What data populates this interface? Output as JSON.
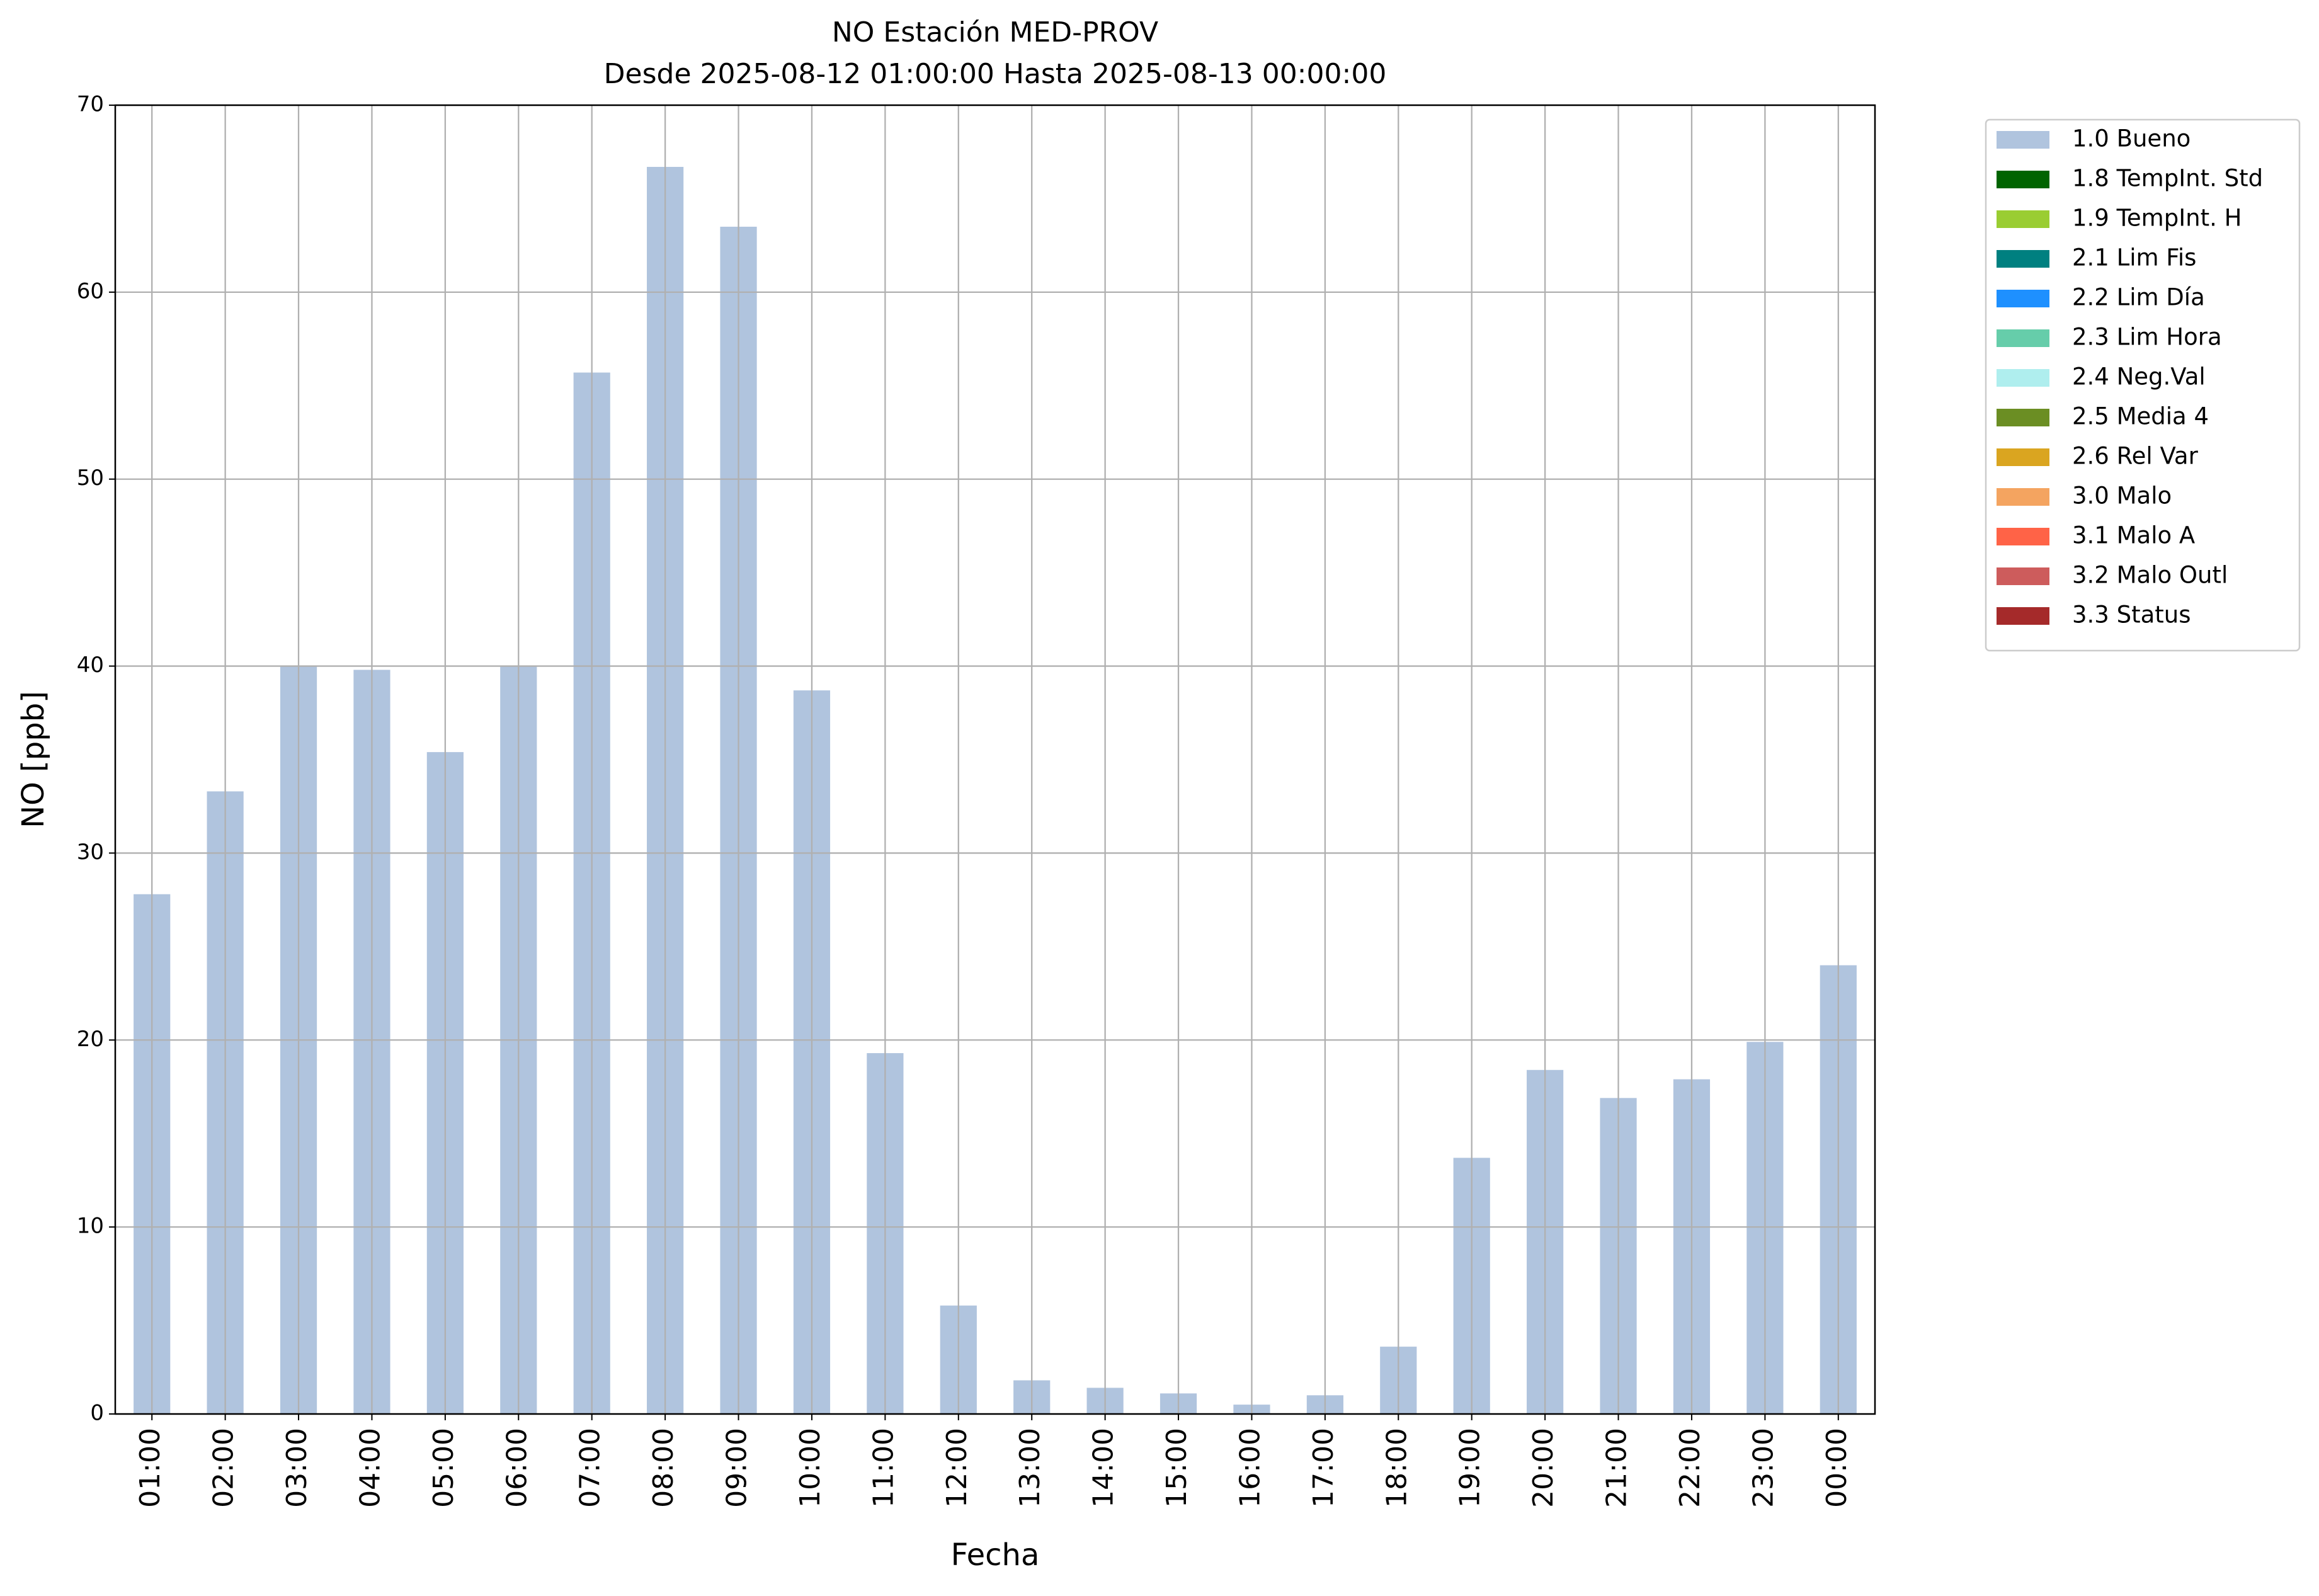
{
  "chart_data": {
    "type": "bar",
    "stacked": true,
    "title": "NO Estación MED-PROV",
    "subtitle": "Desde 2025-08-12 01:00:00 Hasta 2025-08-13 00:00:00",
    "x_label": "Fecha",
    "y_label": "NO [ppb]",
    "categories": [
      "01:00",
      "02:00",
      "03:00",
      "04:00",
      "05:00",
      "06:00",
      "07:00",
      "08:00",
      "09:00",
      "10:00",
      "11:00",
      "12:00",
      "13:00",
      "14:00",
      "15:00",
      "16:00",
      "17:00",
      "18:00",
      "19:00",
      "20:00",
      "21:00",
      "22:00",
      "23:00",
      "00:00"
    ],
    "series": [
      {
        "name": "1.0 Bueno",
        "color": "#b0c4de",
        "values": [
          27.8,
          33.3,
          40.0,
          39.8,
          35.4,
          40.0,
          55.7,
          66.7,
          63.5,
          38.7,
          19.3,
          5.8,
          1.8,
          1.4,
          1.1,
          0.5,
          1.0,
          3.6,
          13.7,
          18.4,
          16.9,
          17.9,
          19.9,
          24.0
        ]
      },
      {
        "name": "1.8 TempInt. Std",
        "color": "#006400",
        "values": [
          0,
          0,
          0,
          0,
          0,
          0,
          0,
          0,
          0,
          0,
          0,
          0,
          0,
          0,
          0,
          0,
          0,
          0,
          0,
          0,
          0,
          0,
          0,
          0
        ]
      },
      {
        "name": "1.9 TempInt. H",
        "color": "#9acd32",
        "values": [
          0,
          0,
          0,
          0,
          0,
          0,
          0,
          0,
          0,
          0,
          0,
          0,
          0,
          0,
          0,
          0,
          0,
          0,
          0,
          0,
          0,
          0,
          0,
          0
        ]
      },
      {
        "name": "2.1 Lim Fis",
        "color": "#008080",
        "values": [
          0,
          0,
          0,
          0,
          0,
          0,
          0,
          0,
          0,
          0,
          0,
          0,
          0,
          0,
          0,
          0,
          0,
          0,
          0,
          0,
          0,
          0,
          0,
          0
        ]
      },
      {
        "name": "2.2 Lim Día",
        "color": "#1e90ff",
        "values": [
          0,
          0,
          0,
          0,
          0,
          0,
          0,
          0,
          0,
          0,
          0,
          0,
          0,
          0,
          0,
          0,
          0,
          0,
          0,
          0,
          0,
          0,
          0,
          0
        ]
      },
      {
        "name": "2.3 Lim Hora",
        "color": "#66cdaa",
        "values": [
          0,
          0,
          0,
          0,
          0,
          0,
          0,
          0,
          0,
          0,
          0,
          0,
          0,
          0,
          0,
          0,
          0,
          0,
          0,
          0,
          0,
          0,
          0,
          0
        ]
      },
      {
        "name": "2.4 Neg.Val",
        "color": "#afeeee",
        "values": [
          0,
          0,
          0,
          0,
          0,
          0,
          0,
          0,
          0,
          0,
          0,
          0,
          0,
          0,
          0,
          0,
          0,
          0,
          0,
          0,
          0,
          0,
          0,
          0
        ]
      },
      {
        "name": "2.5 Media 4",
        "color": "#6b8e23",
        "values": [
          0,
          0,
          0,
          0,
          0,
          0,
          0,
          0,
          0,
          0,
          0,
          0,
          0,
          0,
          0,
          0,
          0,
          0,
          0,
          0,
          0,
          0,
          0,
          0
        ]
      },
      {
        "name": "2.6 Rel Var",
        "color": "#daa520",
        "values": [
          0,
          0,
          0,
          0,
          0,
          0,
          0,
          0,
          0,
          0,
          0,
          0,
          0,
          0,
          0,
          0,
          0,
          0,
          0,
          0,
          0,
          0,
          0,
          0
        ]
      },
      {
        "name": "3.0 Malo",
        "color": "#f4a460",
        "values": [
          0,
          0,
          0,
          0,
          0,
          0,
          0,
          0,
          0,
          0,
          0,
          0,
          0,
          0,
          0,
          0,
          0,
          0,
          0,
          0,
          0,
          0,
          0,
          0
        ]
      },
      {
        "name": "3.1 Malo A",
        "color": "#ff6347",
        "values": [
          0,
          0,
          0,
          0,
          0,
          0,
          0,
          0,
          0,
          0,
          0,
          0,
          0,
          0,
          0,
          0,
          0,
          0,
          0,
          0,
          0,
          0,
          0,
          0
        ]
      },
      {
        "name": "3.2 Malo Outl",
        "color": "#cd5c5c",
        "values": [
          0,
          0,
          0,
          0,
          0,
          0,
          0,
          0,
          0,
          0,
          0,
          0,
          0,
          0,
          0,
          0,
          0,
          0,
          0,
          0,
          0,
          0,
          0,
          0
        ]
      },
      {
        "name": "3.3 Status",
        "color": "#a52a2a",
        "values": [
          0,
          0,
          0,
          0,
          0,
          0,
          0,
          0,
          0,
          0,
          0,
          0,
          0,
          0,
          0,
          0,
          0,
          0,
          0,
          0,
          0,
          0,
          0,
          0
        ]
      }
    ],
    "ylim": [
      0,
      70
    ],
    "yticks": [
      0,
      10,
      20,
      30,
      40,
      50,
      60,
      70
    ],
    "grid": true,
    "legend": "outside right"
  }
}
